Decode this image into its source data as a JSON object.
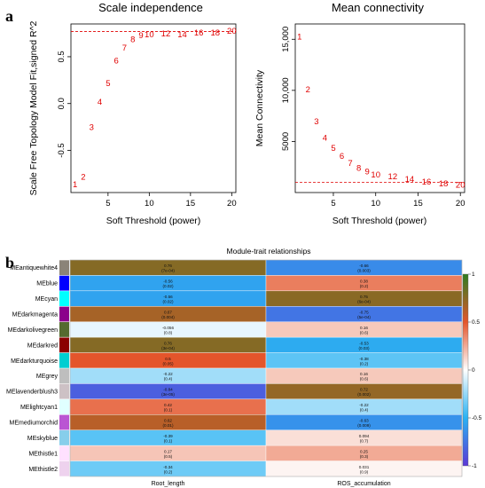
{
  "panel_labels": {
    "a": "a",
    "b": "b"
  },
  "chart_data": [
    {
      "type": "scatter",
      "title": "Scale independence",
      "xlabel": "Soft Threshold (power)",
      "ylabel": "Scale Free Topology Model Fit,signed R^2",
      "xlim": [
        0.5,
        20.5
      ],
      "ylim": [
        -0.95,
        0.85
      ],
      "xticks": [
        "5",
        "10",
        "15",
        "20"
      ],
      "yticks": [
        "-0.5",
        "0.0",
        "0.5"
      ],
      "cutoff": 0.77,
      "x": [
        1,
        2,
        3,
        4,
        5,
        6,
        7,
        8,
        9,
        10,
        12,
        14,
        16,
        18,
        20
      ],
      "y": [
        -0.86,
        -0.78,
        -0.25,
        0.02,
        0.22,
        0.46,
        0.6,
        0.69,
        0.73,
        0.74,
        0.75,
        0.74,
        0.76,
        0.76,
        0.78
      ],
      "labels": [
        "1",
        "2",
        "3",
        "4",
        "5",
        "6",
        "7",
        "8",
        "9",
        "10",
        "12",
        "14",
        "16",
        "18",
        "20"
      ]
    },
    {
      "type": "scatter",
      "title": "Mean connectivity",
      "xlabel": "Soft Threshold (power)",
      "ylabel": "Mean Connectivity",
      "xlim": [
        0.5,
        20.5
      ],
      "ylim": [
        0,
        16500
      ],
      "xticks": [
        "5",
        "10",
        "15",
        "20"
      ],
      "yticks": [
        "5000",
        "10,000",
        "15,000"
      ],
      "cutoff": 1000,
      "x": [
        1,
        2,
        3,
        4,
        5,
        6,
        7,
        8,
        9,
        10,
        12,
        14,
        16,
        18,
        20
      ],
      "y": [
        15300,
        10100,
        7000,
        5400,
        4400,
        3600,
        2900,
        2450,
        2100,
        1800,
        1600,
        1350,
        1100,
        900,
        800
      ],
      "labels": [
        "1",
        "2",
        "3",
        "4",
        "5",
        "6",
        "7",
        "8",
        "9",
        "10",
        "12",
        "14",
        "16",
        "18",
        "20"
      ]
    },
    {
      "type": "heatmap",
      "title": "Module-trait relationships",
      "columns": [
        "Root_length",
        "ROS_accumulation"
      ],
      "rows": [
        "MEantiquewhite4",
        "MEblue",
        "MEcyan",
        "MEdarkmagenta",
        "MEdarkolivegreen",
        "MEdarkred",
        "MEdarkturquoise",
        "MEgrey",
        "MElavenderblush3",
        "MElightcyan1",
        "MEmediumorchid",
        "MEskyblue",
        "MEthistle1",
        "MEthistle2"
      ],
      "row_colors": [
        "#8b8378",
        "#0000ff",
        "#00ffff",
        "#8b008b",
        "#556b2f",
        "#8b0000",
        "#00ced1",
        "#bebebe",
        "#cdc1c5",
        "#e0ffff",
        "#ba55d3",
        "#87ceeb",
        "#ffe1ff",
        "#eed2ee"
      ],
      "values": [
        [
          0.76,
          -0.66
        ],
        [
          -0.56,
          0.38
        ],
        [
          -0.56,
          0.75
        ],
        [
          0.67,
          -0.75
        ],
        [
          -0.056,
          0.16
        ],
        [
          0.76,
          -0.53
        ],
        [
          0.5,
          -0.38
        ],
        [
          -0.22,
          0.16
        ],
        [
          -0.84,
          0.72
        ],
        [
          0.42,
          -0.22
        ],
        [
          0.62,
          -0.63
        ],
        [
          -0.39,
          0.094
        ],
        [
          0.17,
          0.25
        ],
        [
          -0.34,
          0.031
        ]
      ],
      "pvalues": [
        [
          "(7e-04)",
          "(0.003)"
        ],
        [
          "(0.02)",
          "(0.2)"
        ],
        [
          "(0.02)",
          "(6e-04)"
        ],
        [
          "(0.004)",
          "(5e-04)"
        ],
        [
          "(0.8)",
          "(0.6)"
        ],
        [
          "(3e-04)",
          "(0.03)"
        ],
        [
          "(0.05)",
          "(0.2)"
        ],
        [
          "(0.4)",
          "(0.6)"
        ],
        [
          "(3e-05)",
          "(0.002)"
        ],
        [
          "(0.1)",
          "(0.4)"
        ],
        [
          "(0.01)",
          "(0.009)"
        ],
        [
          "(0.1)",
          "(0.7)"
        ],
        [
          "(0.5)",
          "(0.3)"
        ],
        [
          "(0.2)",
          "(0.9)"
        ]
      ],
      "legend_ticks": [
        "1",
        "0.5",
        "0",
        "-0.5",
        "-1"
      ],
      "legend_colors": [
        "#2e7d1f",
        "#e4552b",
        "#ffffff",
        "#2ab2f2",
        "#5a38d6"
      ]
    }
  ]
}
